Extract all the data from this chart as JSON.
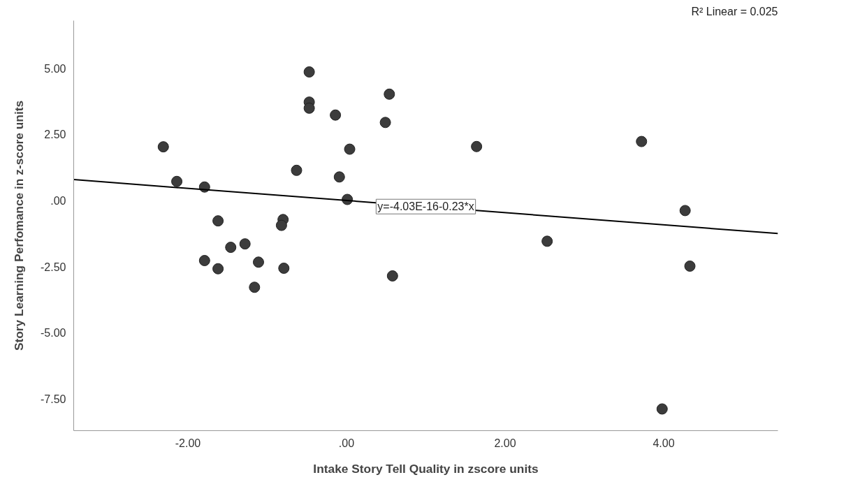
{
  "chart_data": {
    "type": "scatter",
    "xlabel": "Intake Story Tell Quality in zscore units",
    "ylabel": "Story Learning Perfomance in z-score units",
    "xlim": [
      -3.44,
      5.44
    ],
    "ylim": [
      -8.7,
      6.8
    ],
    "xticks": [
      {
        "value": -2,
        "label": "-2.00"
      },
      {
        "value": 0,
        "label": ".00"
      },
      {
        "value": 2,
        "label": "2.00"
      },
      {
        "value": 4,
        "label": "4.00"
      }
    ],
    "yticks": [
      {
        "value": -7.5,
        "label": "-7.50"
      },
      {
        "value": -5,
        "label": "-5.00"
      },
      {
        "value": -2.5,
        "label": "-2.50"
      },
      {
        "value": 0,
        "label": ".00"
      },
      {
        "value": 2.5,
        "label": "2.50"
      },
      {
        "value": 5,
        "label": "5.00"
      }
    ],
    "grid": false,
    "series": [
      {
        "marker": "circle",
        "color": "#3c3c3c",
        "x": [
          -2.31,
          -2.14,
          -1.79,
          -1.62,
          -1.46,
          -1.28,
          -1.79,
          -1.62,
          -1.11,
          -1.16,
          -0.63,
          -0.8,
          -0.82,
          -0.79,
          -0.47,
          -0.47,
          -0.47,
          -0.14,
          -0.09,
          0.04,
          0.01,
          0.49,
          0.54,
          0.58,
          1.64,
          2.53,
          3.72,
          4.27,
          4.33,
          3.98
        ],
        "values": [
          2.03,
          0.72,
          0.51,
          -0.77,
          -1.77,
          -1.64,
          -2.27,
          -2.58,
          -2.33,
          -3.28,
          1.14,
          -0.72,
          -0.94,
          -2.56,
          4.86,
          3.72,
          3.49,
          3.23,
          0.89,
          1.94,
          0.04,
          2.95,
          4.02,
          -2.85,
          2.04,
          -1.54,
          2.23,
          -0.38,
          -2.48,
          -7.88
        ]
      },
      {
        "type": "line",
        "color": "#000000",
        "x": [
          -3.44,
          5.44
        ],
        "values": [
          0.79,
          -1.25
        ]
      }
    ],
    "annotations": [
      {
        "text": "y=-4.03E-16-0.23*x",
        "x": 1.0,
        "y": -0.23
      },
      "R² Linear = 0.025"
    ]
  }
}
